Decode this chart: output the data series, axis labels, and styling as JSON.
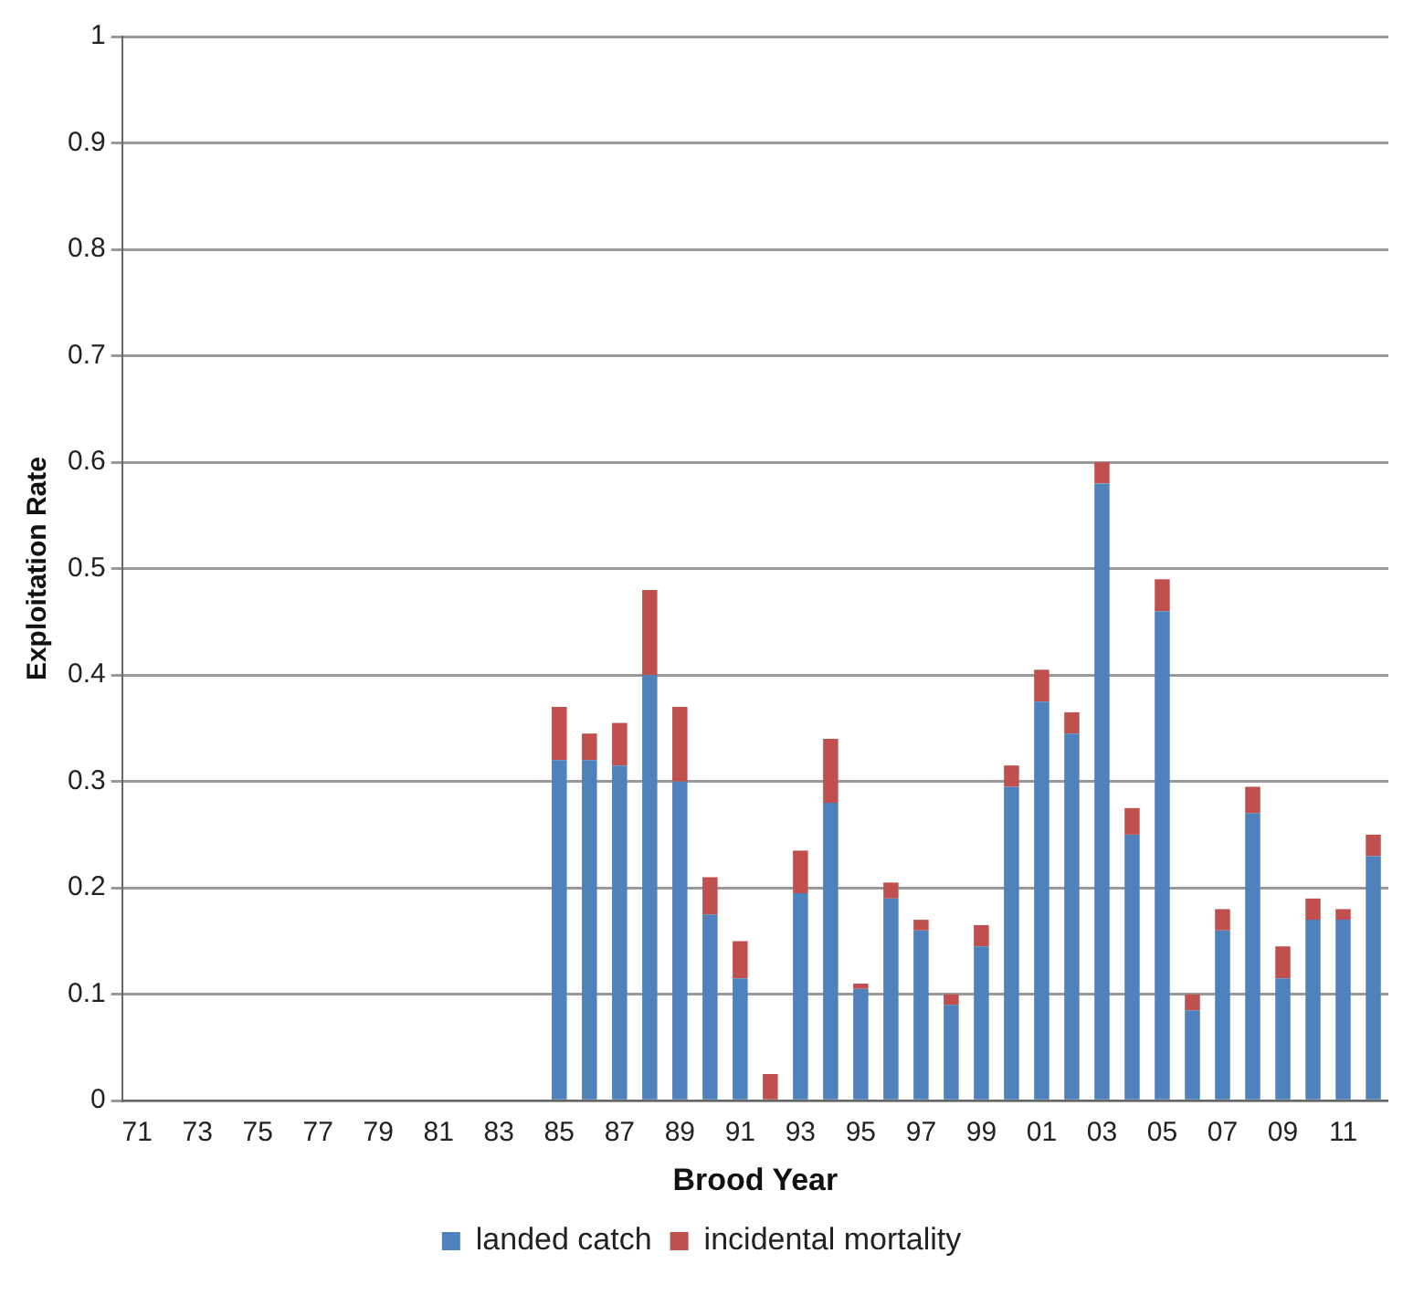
{
  "chart_data": {
    "type": "bar",
    "stacked": true,
    "xlabel": "Brood Year",
    "ylabel": "Exploitation Rate",
    "categories": [
      "71",
      null,
      "73",
      null,
      "75",
      null,
      "77",
      null,
      "79",
      null,
      "81",
      null,
      "83",
      null,
      "85",
      null,
      "87",
      null,
      "89",
      null,
      "91",
      null,
      "93",
      null,
      "95",
      null,
      "97",
      null,
      "99",
      null,
      "01",
      null,
      "03",
      null,
      "05",
      null,
      "07",
      null,
      "09",
      null,
      "11",
      null
    ],
    "series": [
      {
        "name": "landed catch",
        "color": "#4f81bd",
        "values": [
          null,
          null,
          null,
          null,
          null,
          null,
          null,
          null,
          null,
          null,
          null,
          null,
          null,
          null,
          0.32,
          0.32,
          0.315,
          0.4,
          0.3,
          0.175,
          0.115,
          0,
          0.195,
          0.28,
          0.105,
          0.19,
          0.16,
          0.09,
          0.145,
          0.295,
          0.375,
          0.345,
          0.58,
          0.25,
          0.46,
          0.085,
          0.16,
          0.27,
          0.115,
          0.17,
          0.17,
          0.23
        ]
      },
      {
        "name": "incidental mortality",
        "color": "#c0504d",
        "values": [
          null,
          null,
          null,
          null,
          null,
          null,
          null,
          null,
          null,
          null,
          null,
          null,
          null,
          null,
          0.05,
          0.025,
          0.04,
          0.08,
          0.07,
          0.035,
          0.035,
          0.025,
          0.04,
          0.06,
          0.005,
          0.015,
          0.01,
          0.01,
          0.02,
          0.02,
          0.03,
          0.02,
          0.02,
          0.025,
          0.03,
          0.015,
          0.02,
          0.025,
          0.03,
          0.02,
          0.01,
          0.02
        ]
      }
    ],
    "ylim": [
      0,
      1
    ],
    "yticks": [
      0,
      0.1,
      0.2,
      0.3,
      0.4,
      0.5,
      0.6,
      0.7,
      0.8,
      0.9,
      1
    ],
    "grid": "y",
    "legend": "bottom"
  }
}
